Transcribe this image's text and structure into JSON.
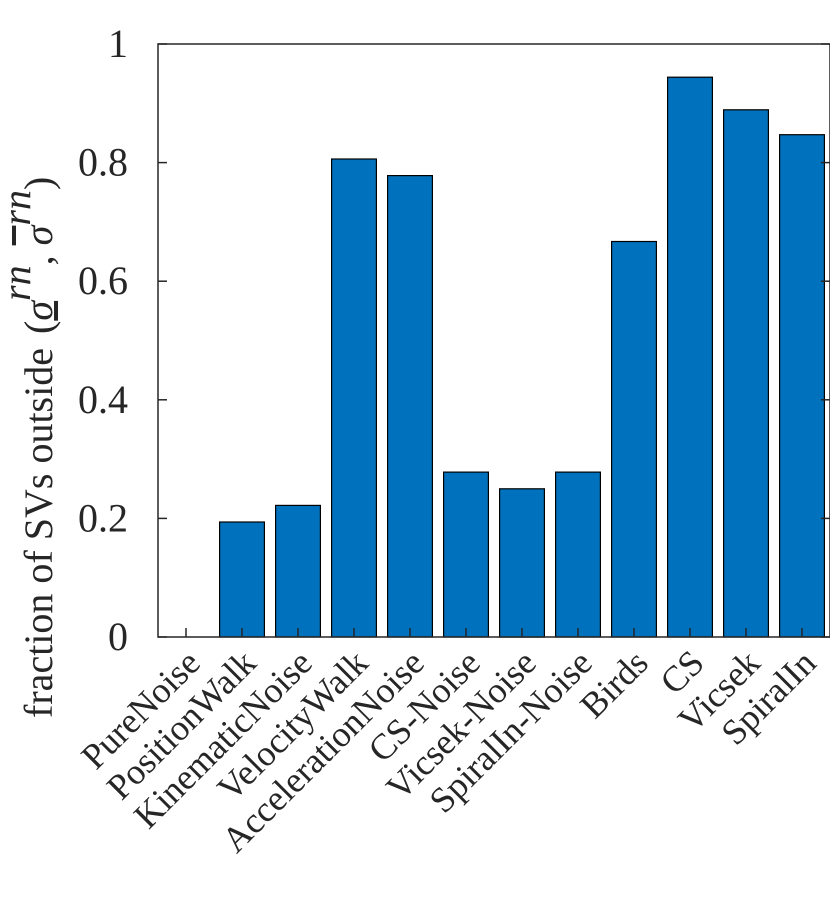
{
  "chart_data": {
    "type": "bar",
    "categories": [
      "PureNoise",
      "PositionWalk",
      "KinematicNoise",
      "VelocityWalk",
      "AccelerationNoise",
      "CS-Noise",
      "Vicsek-Noise",
      "SpiralIn-Noise",
      "Birds",
      "CS",
      "Vicsek",
      "SpiralIn"
    ],
    "values": [
      0,
      0.194,
      0.222,
      0.806,
      0.778,
      0.278,
      0.25,
      0.278,
      0.667,
      0.944,
      0.889,
      0.847
    ],
    "ylim": [
      0,
      1
    ],
    "yticks": [
      0,
      0.2,
      0.4,
      0.6,
      0.8,
      1
    ],
    "ytick_labels": [
      "0",
      "0.2",
      "0.4",
      "0.6",
      "0.8",
      "1"
    ],
    "ylabel_text": "fraction of SVs outside",
    "ylabel_math": "(σ_rn, σ̄rn)",
    "bar_color": "#0072BD",
    "bar_edge_color": "#000000",
    "grid": false
  }
}
